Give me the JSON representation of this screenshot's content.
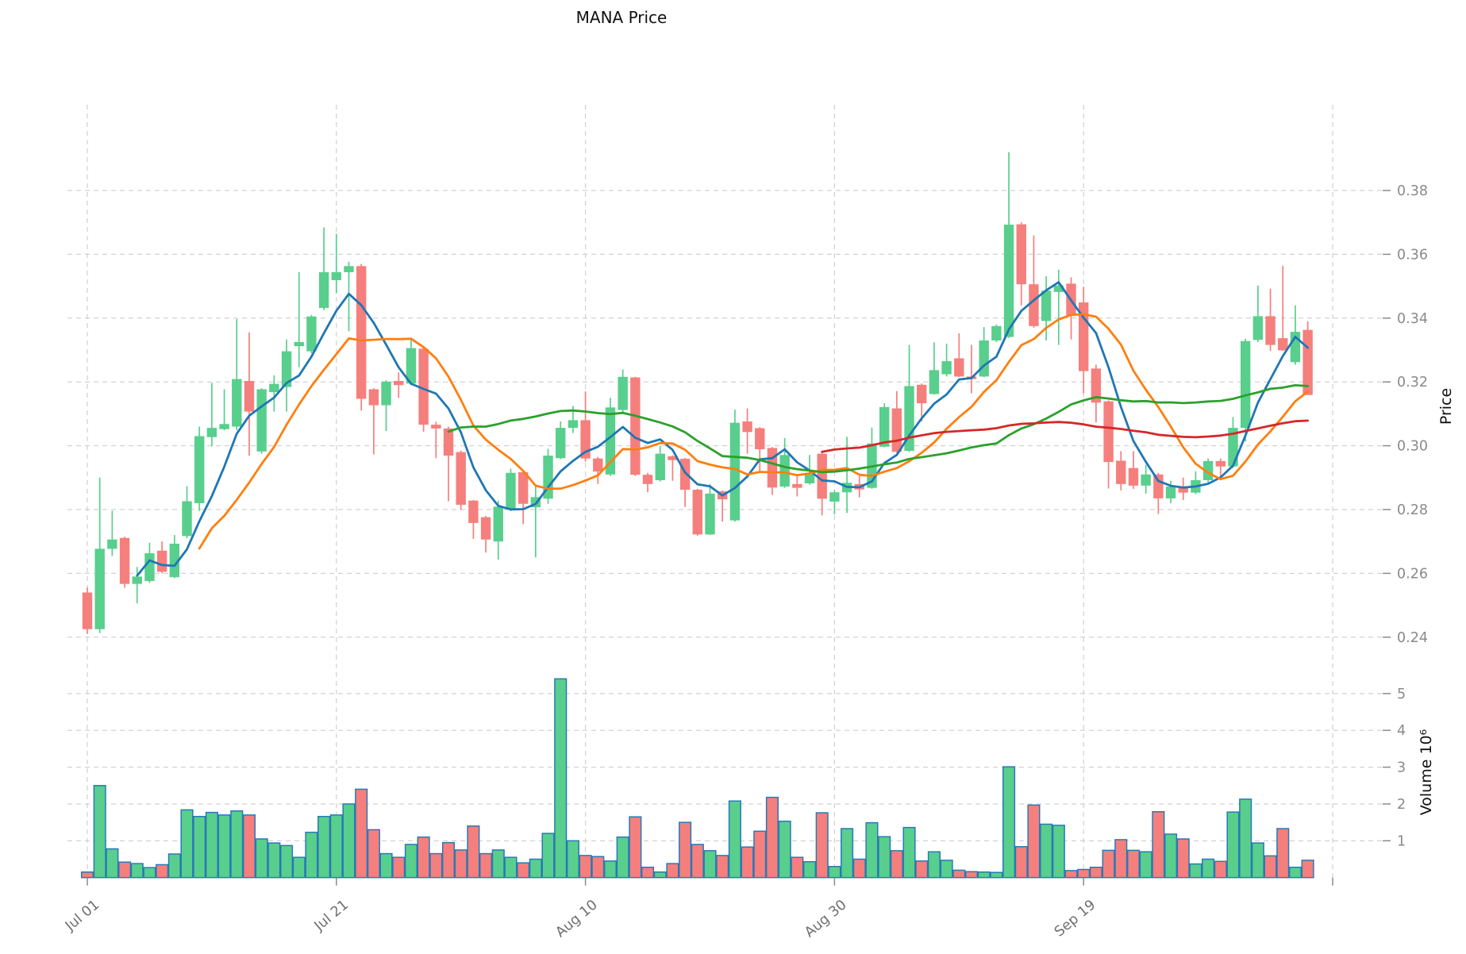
{
  "chart_data": {
    "type": "candlestick",
    "title": "MANA Price",
    "ylabel_price": "Price",
    "ylabel_volume": "Volume  10⁶",
    "legend_position": "none",
    "grid": true,
    "x_axis": {
      "tick_labels": [
        "Jul 01",
        "Jul 21",
        "Aug 10",
        "Aug 30",
        "Sep 19"
      ],
      "tick_indices": [
        0,
        20,
        40,
        60,
        80
      ],
      "extra_gridline_index": 100
    },
    "y_axis_price": {
      "tick_labels": [
        "0.38",
        "0.36",
        "0.34",
        "0.32",
        "0.30",
        "0.28",
        "0.26",
        "0.24"
      ],
      "tick_values": [
        0.38,
        0.36,
        0.34,
        0.32,
        0.3,
        0.28,
        0.26,
        0.24
      ],
      "range": [
        0.234,
        0.398
      ]
    },
    "y_axis_volume": {
      "tick_labels": [
        "5",
        "4",
        "3",
        "2",
        "1"
      ],
      "tick_values": [
        5,
        4,
        3,
        2,
        1
      ],
      "unit_exponent_label": "10⁶",
      "range": [
        0,
        5.6
      ]
    },
    "moving_averages": [
      {
        "name": "SMA5",
        "period": 5,
        "color": "#1f77b4"
      },
      {
        "name": "SMA10",
        "period": 10,
        "color": "#ff7f0e"
      },
      {
        "name": "SMA30",
        "period": 30,
        "color": "#2ca02c"
      },
      {
        "name": "SMA60",
        "period": 60,
        "color": "#d62728"
      }
    ],
    "colors": {
      "up": "#58cf8c",
      "down": "#f57f7d",
      "volume_edge": "#2879b8",
      "grid": "#d2d2d2",
      "tick_label": "#8a8a8a",
      "date_label": "#6f6f6f",
      "text": "#111111",
      "background": "#ffffff"
    },
    "ohlcv_columns": [
      "date",
      "open",
      "high",
      "low",
      "close",
      "volume_millions"
    ],
    "ohlcv": [
      [
        "Jul 01",
        0.254,
        0.2556,
        0.241,
        0.2425,
        0.15
      ],
      [
        "Jul 02",
        0.2425,
        0.29,
        0.2413,
        0.2677,
        2.5
      ],
      [
        "Jul 03",
        0.2677,
        0.2796,
        0.2655,
        0.2706,
        0.78
      ],
      [
        "Jul 04",
        0.2711,
        0.2715,
        0.2555,
        0.2567,
        0.42
      ],
      [
        "Jul 05",
        0.2567,
        0.262,
        0.2506,
        0.259,
        0.38
      ],
      [
        "Jul 06",
        0.2576,
        0.2696,
        0.257,
        0.2663,
        0.27
      ],
      [
        "Jul 07",
        0.2671,
        0.27,
        0.26,
        0.2605,
        0.35
      ],
      [
        "Jul 08",
        0.2588,
        0.272,
        0.2585,
        0.2693,
        0.64
      ],
      [
        "Jul 09",
        0.2717,
        0.2873,
        0.271,
        0.2826,
        1.84
      ],
      [
        "Jul 10",
        0.282,
        0.306,
        0.2796,
        0.303,
        1.66
      ],
      [
        "Jul 11",
        0.3027,
        0.3197,
        0.2998,
        0.3056,
        1.77
      ],
      [
        "Jul 12",
        0.3052,
        0.3177,
        0.3048,
        0.3068,
        1.7
      ],
      [
        "Jul 13",
        0.306,
        0.3397,
        0.3048,
        0.3209,
        1.81
      ],
      [
        "Jul 14",
        0.3203,
        0.3355,
        0.2969,
        0.3107,
        1.7
      ],
      [
        "Jul 15",
        0.2982,
        0.318,
        0.2975,
        0.3177,
        1.05
      ],
      [
        "Jul 16",
        0.3168,
        0.3221,
        0.3107,
        0.3194,
        0.94
      ],
      [
        "Jul 17",
        0.3184,
        0.3333,
        0.3107,
        0.3296,
        0.87
      ],
      [
        "Jul 18",
        0.3312,
        0.3544,
        0.3246,
        0.3325,
        0.55
      ],
      [
        "Jul 19",
        0.3296,
        0.341,
        0.329,
        0.3405,
        1.23
      ],
      [
        "Jul 20",
        0.3432,
        0.3684,
        0.3425,
        0.3544,
        1.66
      ],
      [
        "Jul 21",
        0.3519,
        0.3664,
        0.3478,
        0.3544,
        1.7
      ],
      [
        "Jul 22",
        0.3544,
        0.3577,
        0.3359,
        0.3563,
        2.0
      ],
      [
        "Jul 23",
        0.3563,
        0.357,
        0.311,
        0.3147,
        2.4
      ],
      [
        "Jul 24",
        0.3177,
        0.318,
        0.2973,
        0.3127,
        1.3
      ],
      [
        "Jul 25",
        0.3127,
        0.3205,
        0.3046,
        0.3201,
        0.65
      ],
      [
        "Jul 26",
        0.3203,
        0.323,
        0.315,
        0.319,
        0.55
      ],
      [
        "Jul 27",
        0.3195,
        0.3333,
        0.319,
        0.3306,
        0.9
      ],
      [
        "Jul 28",
        0.3304,
        0.331,
        0.3044,
        0.3066,
        1.1
      ],
      [
        "Jul 29",
        0.3066,
        0.3075,
        0.2961,
        0.3054,
        0.65
      ],
      [
        "Jul 30",
        0.3054,
        0.306,
        0.2826,
        0.2969,
        0.95
      ],
      [
        "Jul 31",
        0.298,
        0.2985,
        0.2799,
        0.2815,
        0.75
      ],
      [
        "Aug 01",
        0.2828,
        0.283,
        0.2708,
        0.2758,
        1.4
      ],
      [
        "Aug 02",
        0.2776,
        0.278,
        0.2665,
        0.2706,
        0.65
      ],
      [
        "Aug 03",
        0.27,
        0.2828,
        0.2643,
        0.2809,
        0.75
      ],
      [
        "Aug 04",
        0.2799,
        0.2928,
        0.2795,
        0.2915,
        0.55
      ],
      [
        "Aug 05",
        0.2917,
        0.292,
        0.2754,
        0.2818,
        0.4
      ],
      [
        "Aug 06",
        0.2807,
        0.2874,
        0.265,
        0.2839,
        0.5
      ],
      [
        "Aug 07",
        0.2834,
        0.299,
        0.2818,
        0.2969,
        1.2
      ],
      [
        "Aug 08",
        0.2961,
        0.3076,
        0.2958,
        0.3056,
        5.4
      ],
      [
        "Aug 09",
        0.3056,
        0.3125,
        0.304,
        0.308,
        1.0
      ],
      [
        "Aug 10",
        0.308,
        0.317,
        0.295,
        0.296,
        0.6
      ],
      [
        "Aug 11",
        0.296,
        0.2965,
        0.288,
        0.2919,
        0.57
      ],
      [
        "Aug 12",
        0.291,
        0.315,
        0.2905,
        0.312,
        0.45
      ],
      [
        "Aug 13",
        0.3112,
        0.3239,
        0.3105,
        0.3216,
        1.1
      ],
      [
        "Aug 14",
        0.3214,
        0.3216,
        0.2905,
        0.2909,
        1.65
      ],
      [
        "Aug 15",
        0.2909,
        0.2915,
        0.2854,
        0.288,
        0.28
      ],
      [
        "Aug 16",
        0.2892,
        0.2999,
        0.2888,
        0.2975,
        0.15
      ],
      [
        "Aug 17",
        0.2967,
        0.297,
        0.289,
        0.2955,
        0.38
      ],
      [
        "Aug 18",
        0.2959,
        0.2962,
        0.2808,
        0.2862,
        1.5
      ],
      [
        "Aug 19",
        0.2862,
        0.2865,
        0.2718,
        0.2722,
        0.9
      ],
      [
        "Aug 20",
        0.2722,
        0.288,
        0.272,
        0.285,
        0.73
      ],
      [
        "Aug 21",
        0.2857,
        0.286,
        0.2762,
        0.2832,
        0.6
      ],
      [
        "Aug 22",
        0.2766,
        0.3113,
        0.2762,
        0.3072,
        2.08
      ],
      [
        "Aug 23",
        0.3076,
        0.3117,
        0.2975,
        0.3043,
        0.83
      ],
      [
        "Aug 24",
        0.3055,
        0.3058,
        0.2915,
        0.2989,
        1.26
      ],
      [
        "Aug 25",
        0.2993,
        0.2996,
        0.2846,
        0.2869,
        2.18
      ],
      [
        "Aug 26",
        0.2872,
        0.3024,
        0.2868,
        0.2971,
        1.53
      ],
      [
        "Aug 27",
        0.288,
        0.2905,
        0.2841,
        0.2868,
        0.55
      ],
      [
        "Aug 28",
        0.2882,
        0.2971,
        0.2878,
        0.2915,
        0.43
      ],
      [
        "Aug 29",
        0.2975,
        0.2978,
        0.2782,
        0.2834,
        1.76
      ],
      [
        "Aug 30",
        0.2825,
        0.286,
        0.2785,
        0.2854,
        0.3
      ],
      [
        "Aug 31",
        0.2854,
        0.3028,
        0.2789,
        0.2884,
        1.33
      ],
      [
        "Sep 01",
        0.288,
        0.2905,
        0.2838,
        0.2863,
        0.5
      ],
      [
        "Sep 02",
        0.2868,
        0.3057,
        0.2865,
        0.3007,
        1.49
      ],
      [
        "Sep 03",
        0.2997,
        0.3133,
        0.2995,
        0.3121,
        1.11
      ],
      [
        "Sep 04",
        0.3117,
        0.3171,
        0.2978,
        0.2981,
        0.73
      ],
      [
        "Sep 05",
        0.2984,
        0.3316,
        0.298,
        0.3187,
        1.36
      ],
      [
        "Sep 06",
        0.3191,
        0.3195,
        0.3076,
        0.3133,
        0.45
      ],
      [
        "Sep 07",
        0.3162,
        0.3324,
        0.316,
        0.3237,
        0.7
      ],
      [
        "Sep 08",
        0.3224,
        0.332,
        0.3217,
        0.3265,
        0.47
      ],
      [
        "Sep 09",
        0.3274,
        0.3352,
        0.3215,
        0.3217,
        0.2
      ],
      [
        "Sep 10",
        0.3217,
        0.3316,
        0.3164,
        0.3209,
        0.16
      ],
      [
        "Sep 11",
        0.3217,
        0.3372,
        0.3215,
        0.333,
        0.15
      ],
      [
        "Sep 12",
        0.333,
        0.338,
        0.3325,
        0.3375,
        0.14
      ],
      [
        "Sep 13",
        0.3341,
        0.392,
        0.3338,
        0.3693,
        3.01
      ],
      [
        "Sep 14",
        0.3694,
        0.37,
        0.344,
        0.3506,
        0.84
      ],
      [
        "Sep 15",
        0.3506,
        0.3659,
        0.337,
        0.3375,
        1.97
      ],
      [
        "Sep 16",
        0.3391,
        0.3531,
        0.333,
        0.3486,
        1.45
      ],
      [
        "Sep 17",
        0.3482,
        0.3552,
        0.3316,
        0.3502,
        1.42
      ],
      [
        "Sep 18",
        0.3508,
        0.3528,
        0.3333,
        0.3409,
        0.19
      ],
      [
        "Sep 19",
        0.3449,
        0.3498,
        0.3164,
        0.3234,
        0.22
      ],
      [
        "Sep 20",
        0.3242,
        0.3254,
        0.3073,
        0.3135,
        0.28
      ],
      [
        "Sep 21",
        0.3139,
        0.3142,
        0.2866,
        0.2949,
        0.74
      ],
      [
        "Sep 22",
        0.2953,
        0.2983,
        0.286,
        0.288,
        1.03
      ],
      [
        "Sep 23",
        0.293,
        0.2983,
        0.2865,
        0.2875,
        0.74
      ],
      [
        "Sep 24",
        0.2875,
        0.294,
        0.285,
        0.291,
        0.7
      ],
      [
        "Sep 25",
        0.291,
        0.2915,
        0.2786,
        0.2835,
        1.79
      ],
      [
        "Sep 26",
        0.2835,
        0.289,
        0.282,
        0.2872,
        1.18
      ],
      [
        "Sep 27",
        0.2872,
        0.29,
        0.283,
        0.2853,
        1.05
      ],
      [
        "Sep 28",
        0.2853,
        0.292,
        0.2848,
        0.2892,
        0.37
      ],
      [
        "Sep 29",
        0.2892,
        0.296,
        0.2885,
        0.2952,
        0.5
      ],
      [
        "Sep 30",
        0.2952,
        0.296,
        0.29,
        0.2935,
        0.44
      ],
      [
        "Oct 01",
        0.2935,
        0.309,
        0.293,
        0.3056,
        1.78
      ],
      [
        "Oct 02",
        0.3056,
        0.3335,
        0.3013,
        0.3328,
        2.13
      ],
      [
        "Oct 03",
        0.3332,
        0.3502,
        0.3325,
        0.3406,
        0.94
      ],
      [
        "Oct 04",
        0.3406,
        0.3492,
        0.3297,
        0.3316,
        0.59
      ],
      [
        "Oct 05",
        0.3337,
        0.3564,
        0.3297,
        0.3299,
        1.33
      ],
      [
        "Oct 06",
        0.3262,
        0.344,
        0.3254,
        0.3357,
        0.28
      ],
      [
        "Oct 07",
        0.3363,
        0.339,
        0.3159,
        0.3159,
        0.47
      ]
    ]
  }
}
